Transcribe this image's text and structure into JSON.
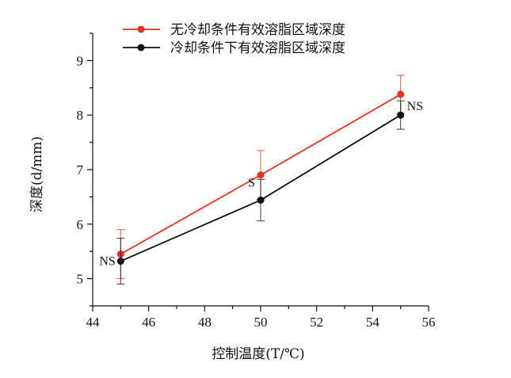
{
  "chart_data": {
    "type": "line",
    "title": "",
    "xlabel": "控制温度(T/℃)",
    "ylabel": "深度(d/mm)",
    "xlim": [
      44,
      56
    ],
    "ylim": [
      4.5,
      9.5
    ],
    "xticks": [
      44,
      46,
      48,
      50,
      52,
      54,
      56
    ],
    "yticks": [
      5,
      6,
      7,
      8,
      9
    ],
    "x": [
      45,
      50,
      55
    ],
    "series": [
      {
        "name": "无冷却条件有效溶脂区域深度",
        "color": "#e8321e",
        "values": [
          5.45,
          6.9,
          8.38
        ],
        "error": [
          0.45,
          0.45,
          0.35
        ]
      },
      {
        "name": "冷却条件下有效溶脂区域深度",
        "color": "#111111",
        "values": [
          5.32,
          6.44,
          8.0
        ],
        "error": [
          0.42,
          0.38,
          0.26
        ]
      }
    ],
    "annotations": [
      {
        "text": "NS",
        "x": 45
      },
      {
        "text": "S",
        "x": 50
      },
      {
        "text": "NS",
        "x": 55
      }
    ],
    "legend_position": "top-left",
    "grid": false
  }
}
